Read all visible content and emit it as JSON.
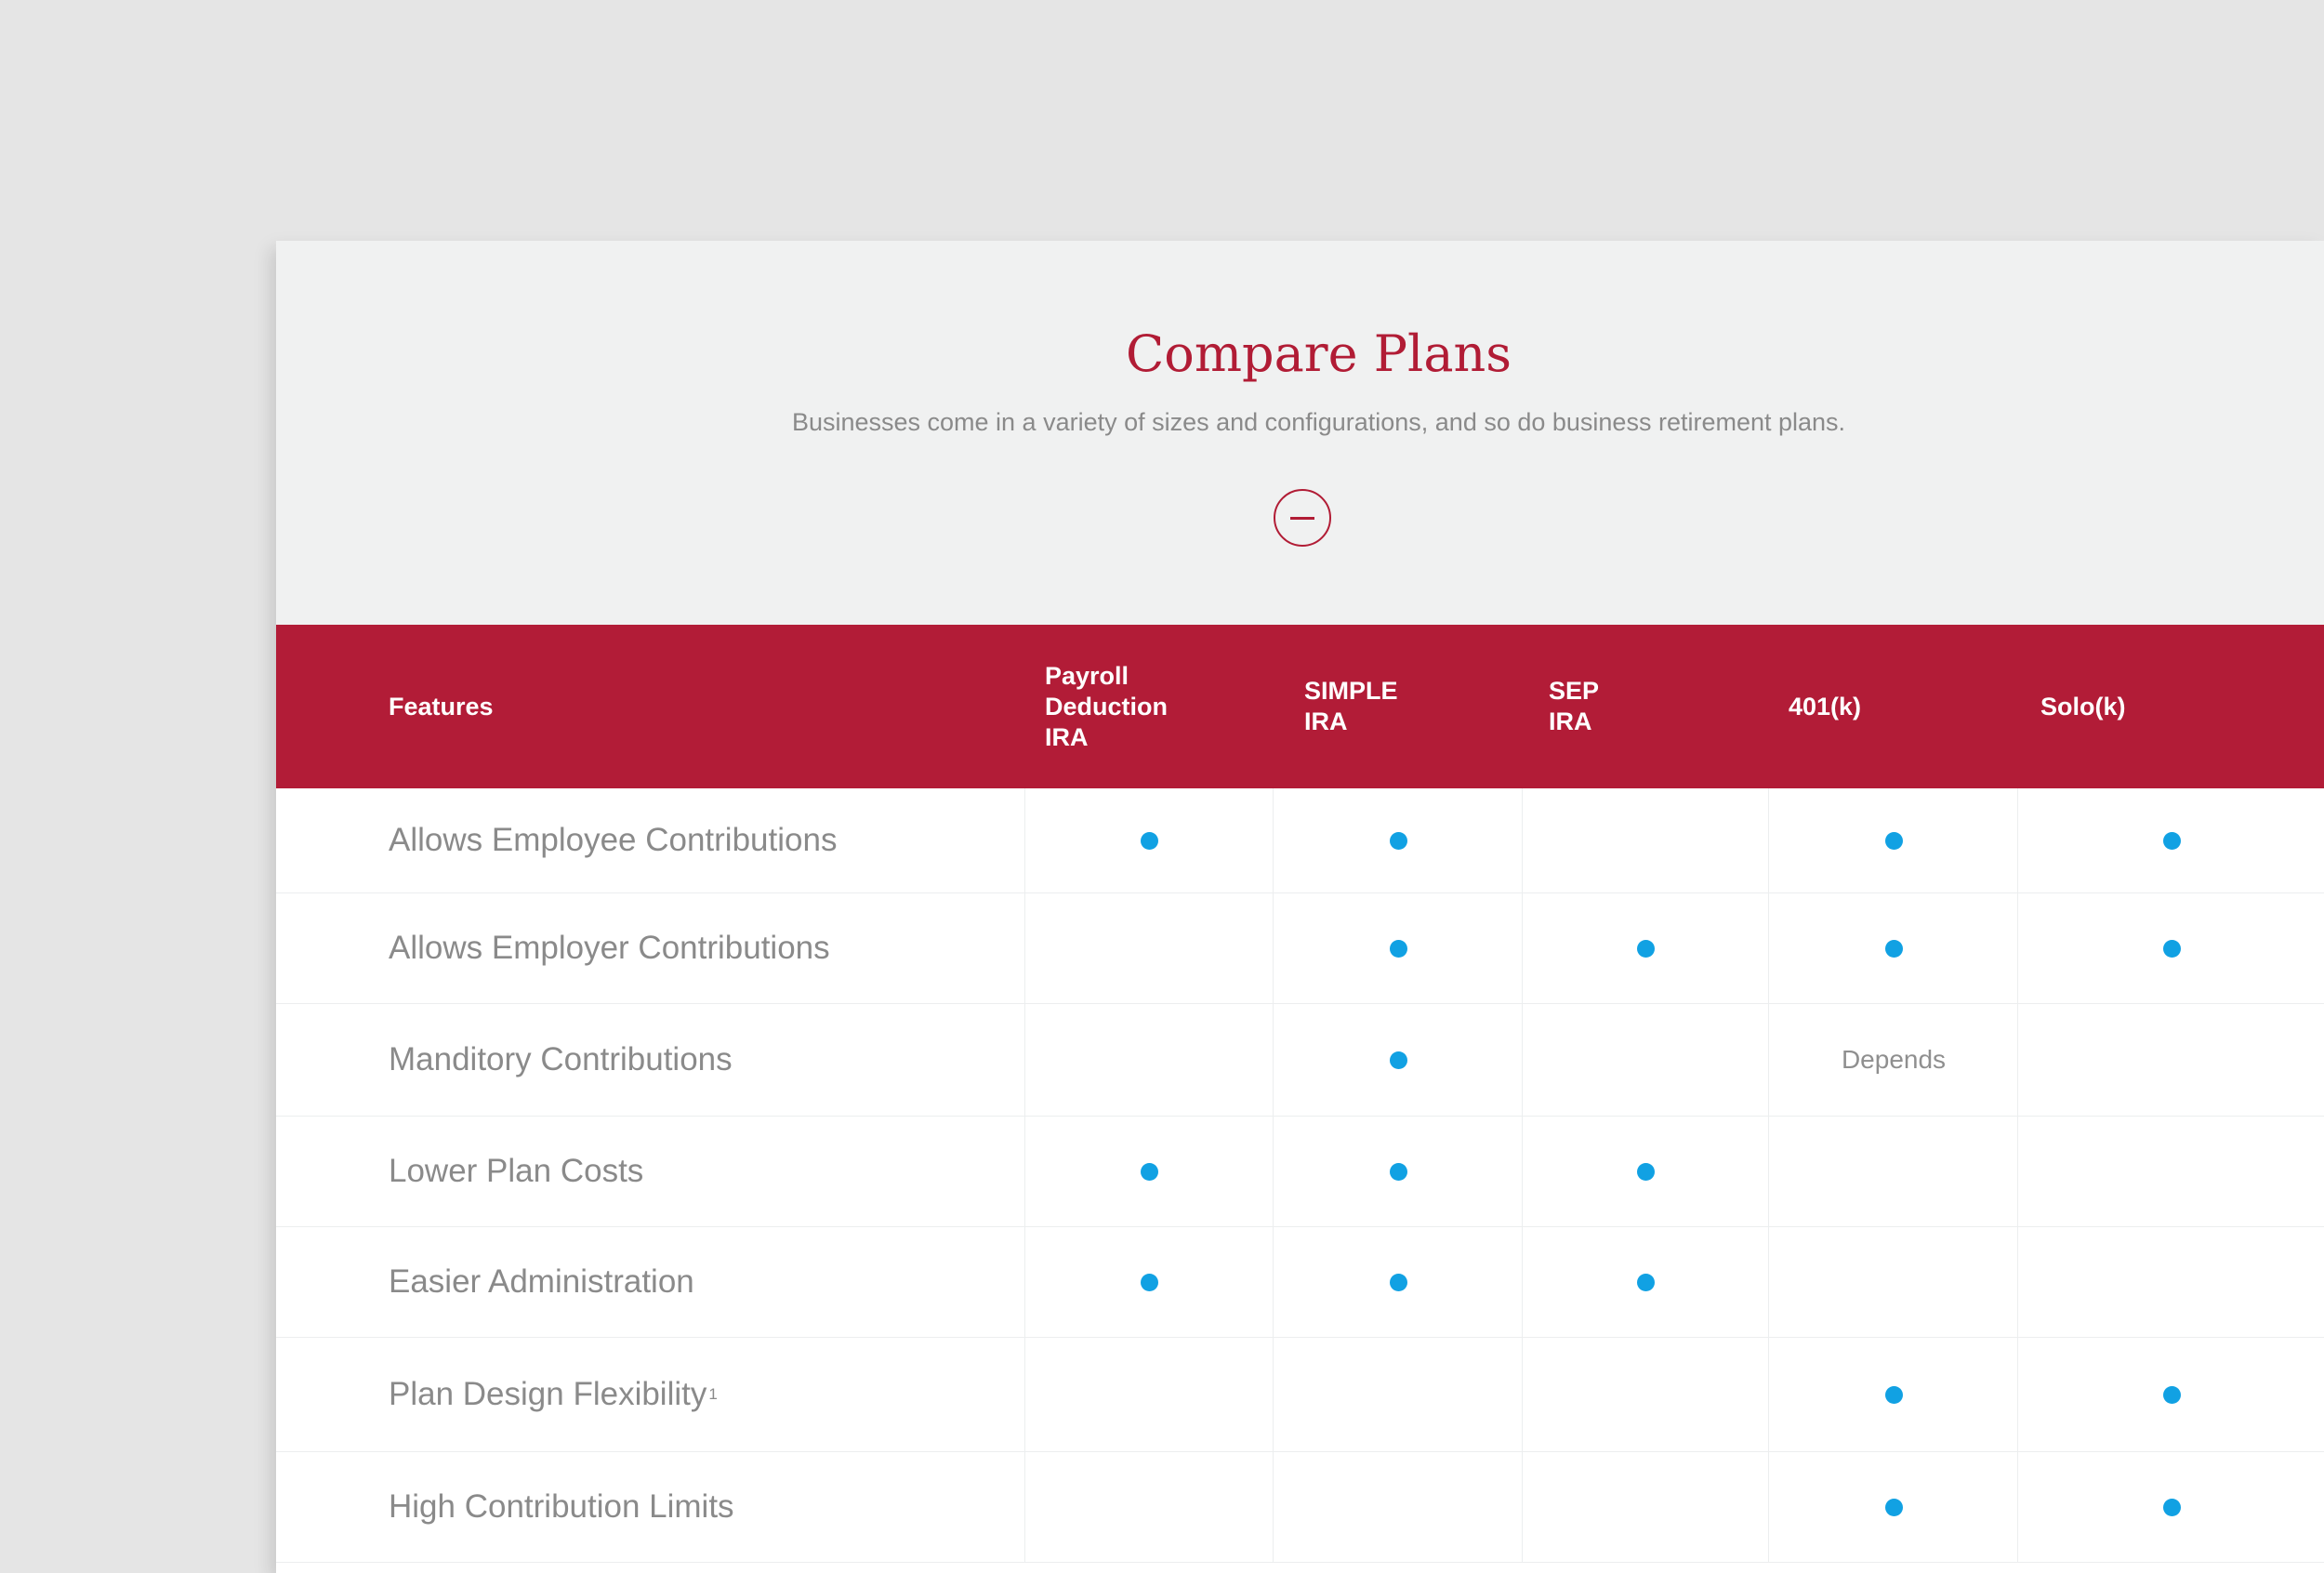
{
  "hero": {
    "title": "Compare Plans",
    "subtitle": "Businesses come in a variety of sizes and configurations, and so do business retirement plans.",
    "collapse_icon": "minus-circle-icon"
  },
  "colors": {
    "brand_red": "#b21c37",
    "dot_blue": "#11a1e3",
    "text_gray": "#8a8a8a",
    "page_bg": "#e5e5e5"
  },
  "table": {
    "headers": [
      "Features",
      "Payroll\nDeduction\nIRA",
      "SIMPLE\nIRA",
      "SEP\nIRA",
      "401(k)",
      "Solo(k)"
    ],
    "rows": [
      {
        "feature": "Allows Employee Contributions",
        "footnote": "",
        "cells": [
          "dot",
          "dot",
          "",
          "dot",
          "dot"
        ]
      },
      {
        "feature": "Allows Employer Contributions",
        "footnote": "",
        "cells": [
          "",
          "dot",
          "dot",
          "dot",
          "dot"
        ]
      },
      {
        "feature": "Manditory Contributions",
        "footnote": "",
        "cells": [
          "",
          "dot",
          "",
          "Depends",
          ""
        ]
      },
      {
        "feature": "Lower Plan Costs",
        "footnote": "",
        "cells": [
          "dot",
          "dot",
          "dot",
          "",
          ""
        ]
      },
      {
        "feature": "Easier Administration",
        "footnote": "",
        "cells": [
          "dot",
          "dot",
          "dot",
          "",
          ""
        ]
      },
      {
        "feature": "Plan Design Flexibility",
        "footnote": "1",
        "cells": [
          "",
          "",
          "",
          "dot",
          "dot"
        ]
      },
      {
        "feature": "High Contribution Limits",
        "footnote": "",
        "cells": [
          "",
          "",
          "",
          "dot",
          "dot"
        ]
      }
    ]
  }
}
